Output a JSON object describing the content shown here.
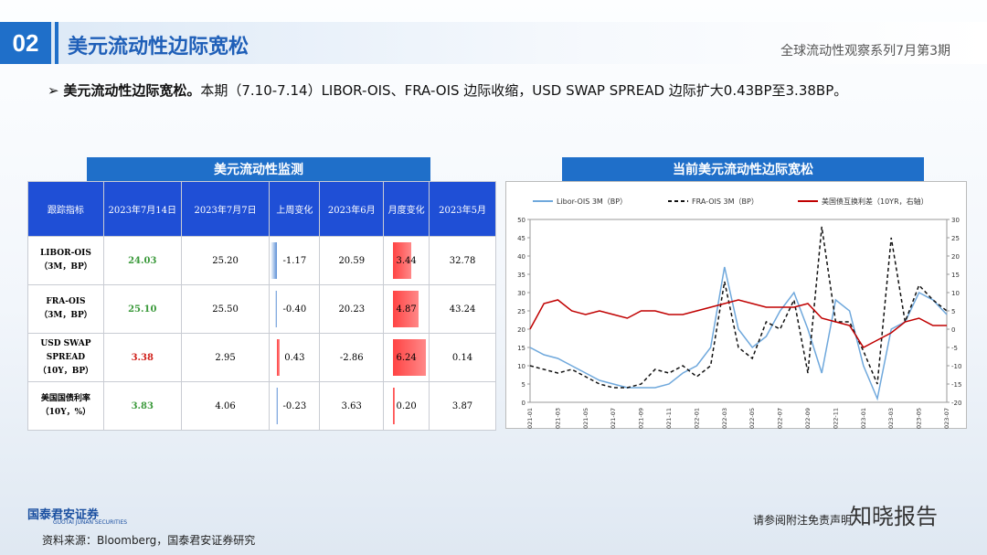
{
  "header": {
    "number": "02",
    "title": "美元流动性边际宽松",
    "series": "全球流动性观察系列7月第3期"
  },
  "bullet": {
    "lead": "美元流动性边际宽松。",
    "text": "本期（7.10-7.14）LIBOR-OIS、FRA-OIS 边际收缩，USD SWAP SPREAD 边际扩大0.43BP至3.38BP。"
  },
  "table": {
    "title": "美元流动性监测",
    "headers": [
      "跟踪指标",
      "2023年7月14日",
      "2023年7月7日",
      "上周变化",
      "2023年6月",
      "月度变化",
      "2023年5月"
    ],
    "rows": [
      {
        "label": [
          "LIBOR-OIS",
          "（3M，BP）"
        ],
        "cells": [
          "24.03",
          "25.20",
          "-1.17",
          "20.59",
          "3.44",
          "32.78"
        ],
        "highlight_color": "#3c9a3c"
      },
      {
        "label": [
          "FRA-OIS",
          "（3M，BP）"
        ],
        "cells": [
          "25.10",
          "25.50",
          "-0.40",
          "20.23",
          "4.87",
          "43.24"
        ],
        "highlight_color": "#3c9a3c"
      },
      {
        "label": [
          "USD SWAP",
          "SPREAD",
          "（10Y，BP）"
        ],
        "cells": [
          "3.38",
          "2.95",
          "0.43",
          "-2.86",
          "6.24",
          "0.14"
        ],
        "highlight_color": "#d0201a"
      },
      {
        "label": [
          "美国国债利率",
          "（10Y，%）"
        ],
        "cells": [
          "3.83",
          "4.06",
          "-0.23",
          "3.63",
          "0.20",
          "3.87"
        ],
        "highlight_color": "#3c9a3c"
      }
    ]
  },
  "chart_data": {
    "type": "line",
    "title": "当前美元流动性边际宽松",
    "x": [
      "2021-01",
      "2021-02",
      "2021-03",
      "2021-04",
      "2021-05",
      "2021-06",
      "2021-07",
      "2021-08",
      "2021-09",
      "2021-10",
      "2021-11",
      "2021-12",
      "2022-01",
      "2022-02",
      "2022-03",
      "2022-04",
      "2022-05",
      "2022-06",
      "2022-07",
      "2022-08",
      "2022-09",
      "2022-10",
      "2022-11",
      "2022-12",
      "2023-01",
      "2023-02",
      "2023-03",
      "2023-04",
      "2023-05",
      "2023-06",
      "2023-07"
    ],
    "xtick_labels": [
      "2021-01",
      null,
      "2021-03",
      null,
      "2021-05",
      null,
      "2021-07",
      null,
      "2021-09",
      null,
      "2021-11",
      null,
      "2022-01",
      null,
      "2022-03",
      null,
      "2022-05",
      null,
      "2022-07",
      null,
      "2022-09",
      null,
      "2022-11",
      null,
      "2023-01",
      null,
      "2023-03",
      null,
      "2023-05",
      null,
      "2023-07"
    ],
    "ylim": [
      0,
      50
    ],
    "yticks": [
      0,
      5,
      10,
      15,
      20,
      25,
      30,
      35,
      40,
      45,
      50
    ],
    "y2lim": [
      -20,
      30
    ],
    "y2ticks": [
      -20,
      -15,
      -10,
      -5,
      0,
      5,
      10,
      15,
      20,
      25,
      30
    ],
    "series": [
      {
        "name": "Libor-OIS 3M（BP）",
        "color": "#6fa8dc",
        "dash": "",
        "values": [
          15,
          13,
          12,
          10,
          8,
          6,
          5,
          4,
          4,
          4,
          5,
          8,
          10,
          15,
          37,
          20,
          15,
          18,
          25,
          30,
          20,
          8,
          28,
          25,
          10,
          1,
          20,
          22,
          30,
          28,
          24
        ]
      },
      {
        "name": "FRA-OIS 3M（BP）",
        "color": "#111111",
        "dash": "4,3",
        "values": [
          10,
          9,
          8,
          9,
          7,
          5,
          4,
          4,
          5,
          9,
          8,
          10,
          7,
          10,
          33,
          15,
          12,
          22,
          20,
          28,
          8,
          48,
          22,
          22,
          14,
          5,
          45,
          22,
          32,
          28,
          25
        ]
      },
      {
        "name": "美国债互换利差（10YR，右轴）",
        "color": "#c00000",
        "dash": "",
        "axis": "y2",
        "values": [
          0,
          7,
          8,
          5,
          4,
          5,
          4,
          3,
          5,
          5,
          4,
          4,
          5,
          6,
          7,
          8,
          7,
          6,
          6,
          6,
          7,
          3,
          2,
          1,
          -5,
          -3,
          -1,
          2,
          3,
          1,
          1
        ]
      }
    ]
  },
  "footer": {
    "source": "资料来源：Bloomberg，国泰君安证券研究",
    "disclaimer": "请参阅附注免责声明",
    "watermark": "知晓报告",
    "logo": "国泰君安证券",
    "logo_en": "GUOTAI JUNAN SECURITIES"
  }
}
